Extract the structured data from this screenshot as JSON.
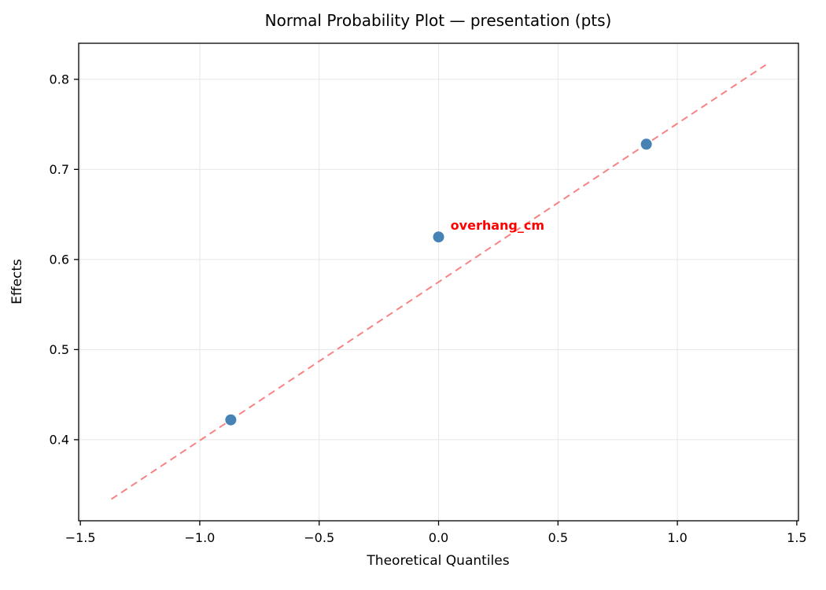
{
  "chart_data": {
    "type": "scatter",
    "title": "Normal Probability Plot — presentation (pts)",
    "xlabel": "Theoretical Quantiles",
    "ylabel": "Effects",
    "xlim": [
      -1.507,
      1.507
    ],
    "ylim": [
      0.31,
      0.84
    ],
    "grid": true,
    "legend": "none",
    "xtick_values": [
      -1.5,
      -1.0,
      -0.5,
      0.0,
      0.5,
      1.0,
      1.5
    ],
    "xtick_labels": [
      "−1.5",
      "−1.0",
      "−0.5",
      "0.0",
      "0.5",
      "1.0",
      "1.5"
    ],
    "ytick_values": [
      0.4,
      0.5,
      0.6,
      0.7,
      0.8
    ],
    "ytick_labels": [
      "0.4",
      "0.5",
      "0.6",
      "0.7",
      "0.8"
    ],
    "points": [
      {
        "x": -0.87,
        "y": 0.422
      },
      {
        "x": 0.0,
        "y": 0.625
      },
      {
        "x": 0.87,
        "y": 0.728
      }
    ],
    "fit_line": {
      "x1": -1.37,
      "y1": 0.334,
      "x2": 1.37,
      "y2": 0.816,
      "style": "dashed"
    },
    "annotation": {
      "text": "overhang_cm",
      "x": 0.05,
      "y": 0.637,
      "color": "#ff0000"
    },
    "point_color": "#4682b4",
    "line_color": "#f66d6d",
    "grid_color": "#e7e7e7",
    "point_radius": 7
  }
}
